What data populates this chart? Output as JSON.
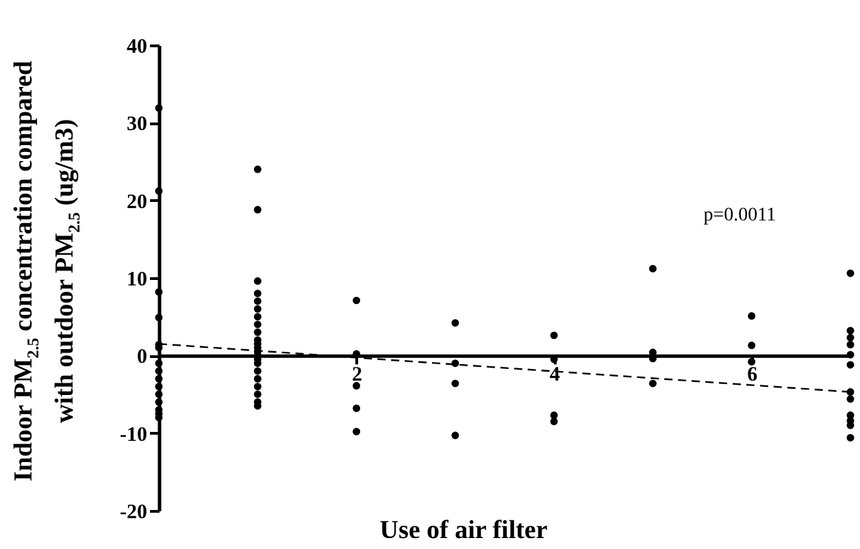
{
  "chart_data": {
    "type": "scatter",
    "xlabel": "Use of air filter",
    "ylabel": "Indoor PM$_{2.5}$ concentration compared with outdoor PM$_{2.5}$ (ug/m3)",
    "xlim": [
      0,
      7
    ],
    "xticks": [
      2,
      4,
      6
    ],
    "ylim": [
      -20,
      40
    ],
    "yticks": [
      -20,
      -10,
      0,
      10,
      20,
      30,
      40
    ],
    "grid": false,
    "marker": "circle",
    "annotations": [
      "p=0.0011"
    ],
    "series": [
      {
        "color": "#000000",
        "x": [
          0,
          0,
          0,
          0,
          0,
          0,
          0,
          0,
          0,
          0,
          0,
          0,
          0,
          0,
          0,
          1,
          1,
          1,
          1,
          1,
          1,
          1,
          1,
          1,
          1,
          1,
          1,
          1,
          1,
          1,
          1,
          1,
          1,
          1,
          1,
          1,
          1,
          2,
          2,
          2,
          2,
          2,
          3,
          3,
          3,
          3,
          4,
          4,
          4,
          4,
          5,
          5,
          5,
          5,
          6,
          6,
          6,
          7,
          7,
          7,
          7,
          7,
          7,
          7,
          7,
          7,
          7,
          7,
          7
        ],
        "values": [
          31.9,
          21.2,
          8.2,
          4.9,
          1.4,
          1,
          -1,
          -2,
          -3,
          -4,
          -5,
          -6,
          -7,
          -7.5,
          -8,
          24,
          18.8,
          9.6,
          8,
          7,
          6,
          5,
          4,
          3,
          2,
          1.5,
          1,
          0.5,
          0,
          -0.5,
          -1,
          -2,
          -3,
          -4,
          -5,
          -6,
          -6.5,
          7.1,
          0.2,
          -3.9,
          -6.8,
          -9.8,
          4.2,
          -1,
          -3.6,
          -10.3,
          2.6,
          -0.5,
          -7.7,
          -8.5,
          11.2,
          0.4,
          -0.4,
          -3.6,
          5.1,
          1.3,
          -0.8,
          10.6,
          3.2,
          2.3,
          1.4,
          0.1,
          -1.2,
          -4.7,
          -5.6,
          -7.7,
          -8.4,
          -9,
          -10.6
        ]
      },
      {
        "type": "line",
        "color": "#000000",
        "line_style": "dashed",
        "marker": "none",
        "x": [
          0,
          7
        ],
        "values": [
          1.5,
          -4.7
        ]
      }
    ]
  }
}
